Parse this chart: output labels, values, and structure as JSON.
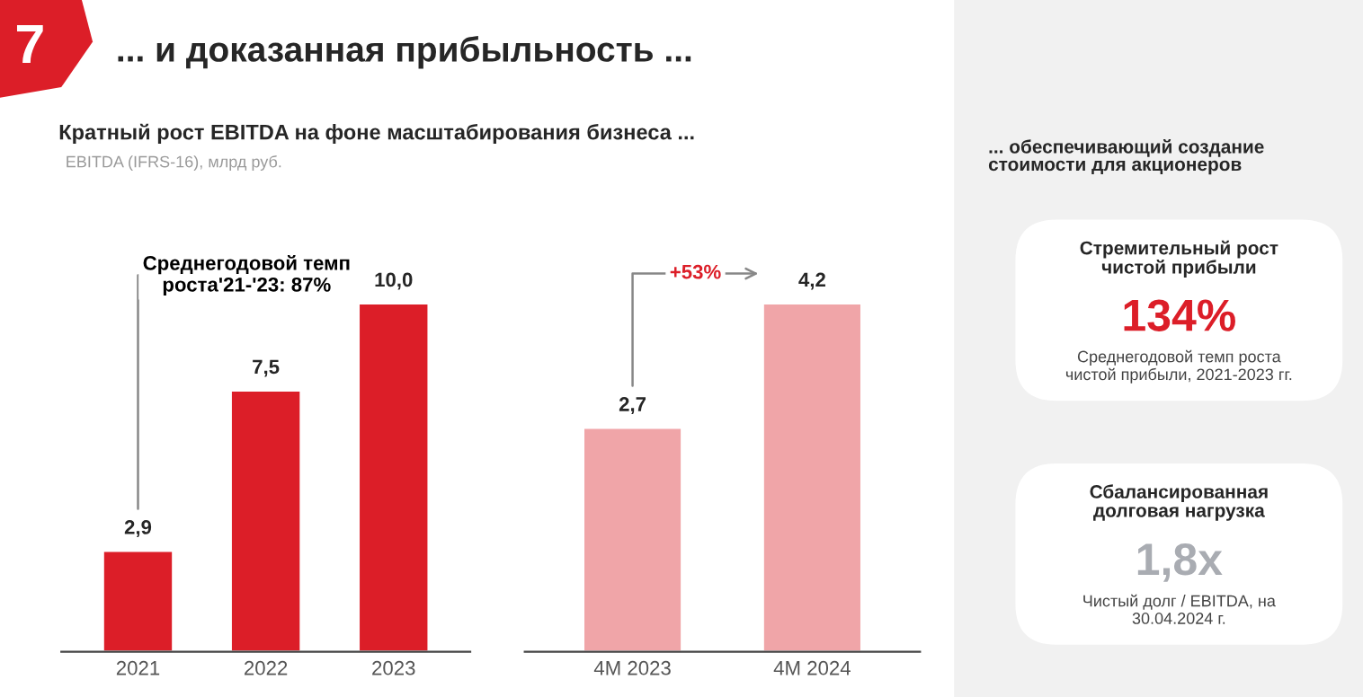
{
  "chart_data": [
    {
      "type": "bar",
      "title": "Кратный рост EBITDA на фоне масштабирования бизнеса ...",
      "subtitle": "EBITDA (IFRS-16), млрд руб.",
      "categories": [
        "2021",
        "2022",
        "2023"
      ],
      "values": [
        2.9,
        7.5,
        10.0
      ],
      "value_labels": [
        "2,9",
        "7,5",
        "10,0"
      ],
      "color": "#dc1e28",
      "tick_labels": "x",
      "annotations": [
        "7",
        "... и доказанная прибыльность ...",
        "Среднегодовой темп\nроста'21-'23: 87%"
      ]
    },
    {
      "type": "bar",
      "categories": [
        "4M 2023",
        "4M 2024"
      ],
      "values": [
        2.7,
        4.2
      ],
      "value_labels": [
        "2,7",
        "4,2"
      ],
      "color": "#f0a5a8",
      "tick_labels": "x",
      "annotations": [
        "+53%"
      ]
    },
    {
      "type": "other",
      "title": "... обеспечивающий создание\nстоимости для акционеров",
      "annotations": [
        "Стремительный рост\nчистой прибыли",
        "134%",
        "Среднегодовой темп роста\nчистой прибыли, 2021-2023 гг.",
        "Сбалансированная\nдолговая нагрузка",
        "1,8x",
        "Чистый долг / EBITDA, на\n30.04.2024 г."
      ]
    }
  ]
}
